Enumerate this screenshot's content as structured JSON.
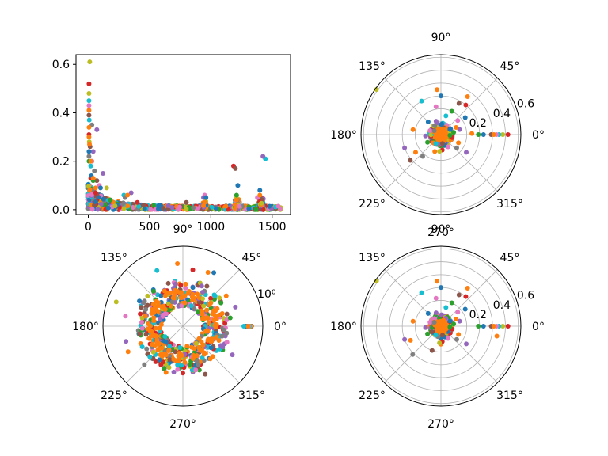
{
  "chart_data": [
    {
      "type": "scatter",
      "xlim": [
        -100,
        1650
      ],
      "ylim": [
        -0.02,
        0.64
      ],
      "xticks": [
        0,
        500,
        1000,
        1500
      ],
      "xtick_labels": [
        "0",
        "500",
        "1000",
        "1500"
      ],
      "yticks": [
        0.0,
        0.2,
        0.4,
        0.6
      ],
      "ytick_labels": [
        "0.0",
        "0.2",
        "0.4",
        "0.6"
      ],
      "grid": false,
      "series": [
        {
          "color": "#d62728",
          "points": [
            [
              6,
              0.52
            ],
            [
              6,
              0.31
            ],
            [
              20,
              0.13
            ],
            [
              1185,
              0.18
            ],
            [
              60,
              0.07
            ],
            [
              400,
              0.03
            ]
          ]
        },
        {
          "color": "#bcbd22",
          "points": [
            [
              12,
              0.61
            ],
            [
              6,
              0.48
            ],
            [
              8,
              0.28
            ],
            [
              150,
              0.09
            ],
            [
              1210,
              0.05
            ]
          ]
        },
        {
          "color": "#17becf",
          "points": [
            [
              6,
              0.45
            ],
            [
              8,
              0.37
            ],
            [
              20,
              0.18
            ],
            [
              1445,
              0.21
            ],
            [
              290,
              0.06
            ]
          ]
        },
        {
          "color": "#8c564b",
          "points": [
            [
              6,
              0.39
            ],
            [
              15,
              0.26
            ],
            [
              70,
              0.12
            ],
            [
              1200,
              0.17
            ],
            [
              800,
              0.03
            ]
          ]
        },
        {
          "color": "#e377c2",
          "points": [
            [
              6,
              0.43
            ],
            [
              30,
              0.2
            ],
            [
              90,
              0.1
            ],
            [
              950,
              0.06
            ],
            [
              1380,
              0.05
            ]
          ]
        },
        {
          "color": "#9467bd",
          "points": [
            [
              70,
              0.33
            ],
            [
              40,
              0.24
            ],
            [
              120,
              0.15
            ],
            [
              1425,
              0.22
            ],
            [
              940,
              0.05
            ],
            [
              350,
              0.07
            ]
          ]
        },
        {
          "color": "#7f7f7f",
          "points": [
            [
              30,
              0.35
            ],
            [
              6,
              0.22
            ],
            [
              50,
              0.16
            ],
            [
              300,
              0.05
            ],
            [
              1215,
              0.04
            ]
          ]
        },
        {
          "color": "#2ca02c",
          "points": [
            [
              6,
              0.2
            ],
            [
              40,
              0.12
            ],
            [
              180,
              0.04
            ],
            [
              1210,
              0.06
            ]
          ]
        },
        {
          "color": "#1f77b4",
          "points": [
            [
              6,
              0.24
            ],
            [
              25,
              0.14
            ],
            [
              100,
              0.09
            ],
            [
              1220,
              0.1
            ],
            [
              1400,
              0.08
            ],
            [
              960,
              0.05
            ]
          ]
        },
        {
          "color": "#ff7f0e",
          "points": [
            [
              6,
              0.41
            ],
            [
              6,
              0.34
            ],
            [
              6,
              0.3
            ],
            [
              10,
              0.27
            ],
            [
              20,
              0.2
            ],
            [
              40,
              0.13
            ],
            [
              60,
              0.09
            ],
            [
              320,
              0.06
            ],
            [
              1210,
              0.04
            ],
            [
              1400,
              0.06
            ],
            [
              950,
              0.03
            ]
          ]
        }
      ]
    },
    {
      "type": "scatter",
      "projection": "polar",
      "rlim": [
        0,
        0.62
      ],
      "rticks": [
        0.2,
        0.4,
        0.6
      ],
      "rtick_labels": [
        "0.2",
        "0.4",
        "0.6"
      ],
      "theta_ticks": [
        "0°",
        "45°",
        "90°",
        "135°",
        "180°",
        "225°",
        "270°",
        "315°"
      ],
      "grid": true,
      "points": [
        {
          "theta": 145,
          "r": 0.61,
          "color": "#bcbd22"
        },
        {
          "theta": 0,
          "r": 0.52,
          "color": "#d62728"
        },
        {
          "theta": 0,
          "r": 0.48,
          "color": "#bcbd22"
        },
        {
          "theta": 0,
          "r": 0.45,
          "color": "#17becf"
        },
        {
          "theta": 0,
          "r": 0.43,
          "color": "#e377c2"
        },
        {
          "theta": 0,
          "r": 0.39,
          "color": "#8c564b"
        },
        {
          "theta": 0,
          "r": 0.33,
          "color": "#1f77b4"
        },
        {
          "theta": 0,
          "r": 0.29,
          "color": "#2ca02c"
        },
        {
          "theta": 0,
          "r": 0.41,
          "color": "#ff7f0e"
        },
        {
          "theta": 2,
          "r": 0.24,
          "color": "#ff7f0e"
        },
        {
          "theta": 95,
          "r": 0.35,
          "color": "#ff7f0e"
        },
        {
          "theta": 90,
          "r": 0.3,
          "color": "#1f77b4"
        },
        {
          "theta": 100,
          "r": 0.22,
          "color": "#e377c2"
        },
        {
          "theta": 120,
          "r": 0.3,
          "color": "#17becf"
        },
        {
          "theta": 60,
          "r": 0.28,
          "color": "#8c564b"
        },
        {
          "theta": 55,
          "r": 0.36,
          "color": "#ff7f0e"
        },
        {
          "theta": 50,
          "r": 0.3,
          "color": "#d62728"
        },
        {
          "theta": 65,
          "r": 0.2,
          "color": "#2ca02c"
        },
        {
          "theta": 40,
          "r": 0.17,
          "color": "#e377c2"
        },
        {
          "theta": 35,
          "r": 0.23,
          "color": "#1f77b4"
        },
        {
          "theta": 170,
          "r": 0.22,
          "color": "#ff7f0e"
        },
        {
          "theta": 215,
          "r": 0.24,
          "color": "#ff7f0e"
        },
        {
          "theta": 200,
          "r": 0.3,
          "color": "#9467bd"
        },
        {
          "theta": 220,
          "r": 0.31,
          "color": "#8c564b"
        },
        {
          "theta": 230,
          "r": 0.22,
          "color": "#7f7f7f"
        },
        {
          "theta": 250,
          "r": 0.14,
          "color": "#ff7f0e"
        },
        {
          "theta": 275,
          "r": 0.12,
          "color": "#d62728"
        },
        {
          "theta": 265,
          "r": 0.13,
          "color": "#bcbd22"
        },
        {
          "theta": 320,
          "r": 0.16,
          "color": "#7f7f7f"
        },
        {
          "theta": 325,
          "r": 0.24,
          "color": "#9467bd"
        },
        {
          "theta": 335,
          "r": 0.15,
          "color": "#ff7f0e"
        },
        {
          "theta": 15,
          "r": 0.15,
          "color": "#9467bd"
        },
        {
          "theta": 25,
          "r": 0.13,
          "color": "#ff7f0e"
        },
        {
          "theta": 10,
          "r": 0.1,
          "color": "#2ca02c"
        },
        {
          "theta": 185,
          "r": 0.12,
          "color": "#9467bd"
        },
        {
          "theta": 160,
          "r": 0.09,
          "color": "#e377c2"
        },
        {
          "theta": 290,
          "r": 0.09,
          "color": "#1f77b4"
        },
        {
          "theta": 300,
          "r": 0.11,
          "color": "#e377c2"
        },
        {
          "theta": 135,
          "r": 0.14,
          "color": "#1f77b4"
        },
        {
          "theta": 75,
          "r": 0.15,
          "color": "#17becf"
        },
        {
          "theta": 210,
          "r": 0.12,
          "color": "#2ca02c"
        },
        {
          "theta": 345,
          "r": 0.09,
          "color": "#d62728"
        },
        {
          "theta": 30,
          "r": 0.08,
          "color": "#1f77b4"
        },
        {
          "theta": 110,
          "r": 0.11,
          "color": "#9467bd"
        },
        {
          "theta": 150,
          "r": 0.06,
          "color": "#7f7f7f"
        },
        {
          "theta": 240,
          "r": 0.08,
          "color": "#17becf"
        },
        {
          "theta": 280,
          "r": 0.07,
          "color": "#8c564b"
        },
        {
          "theta": 355,
          "r": 0.07,
          "color": "#2ca02c"
        }
      ]
    },
    {
      "type": "scatter",
      "projection": "polar",
      "rscale": "log",
      "rtick_labels": [
        "10⁰"
      ],
      "theta_ticks": [
        "0°",
        "45°",
        "90°",
        "135°",
        "180°",
        "225°",
        "270°",
        "315°"
      ],
      "grid": true,
      "points": [
        {
          "theta": 160,
          "r": 0.61,
          "color": "#bcbd22"
        },
        {
          "theta": 0,
          "r": 0.52,
          "color": "#d62728"
        },
        {
          "theta": 0,
          "r": 0.48,
          "color": "#bcbd22"
        },
        {
          "theta": 0,
          "r": 0.45,
          "color": "#17becf"
        },
        {
          "theta": 0,
          "r": 0.43,
          "color": "#e377c2"
        },
        {
          "theta": 0,
          "r": 0.39,
          "color": "#8c564b"
        },
        {
          "theta": 0,
          "r": 0.35,
          "color": "#1f77b4"
        },
        {
          "theta": 0,
          "r": 0.41,
          "color": "#ff7f0e"
        },
        {
          "theta": 0,
          "r": 0.31,
          "color": "#17becf"
        },
        {
          "theta": 95,
          "r": 0.35,
          "color": "#ff7f0e"
        },
        {
          "theta": 115,
          "r": 0.32,
          "color": "#17becf"
        },
        {
          "theta": 60,
          "r": 0.33,
          "color": "#1f77b4"
        },
        {
          "theta": 65,
          "r": 0.28,
          "color": "#ff7f0e"
        },
        {
          "theta": 80,
          "r": 0.24,
          "color": "#d62728"
        },
        {
          "theta": 170,
          "r": 0.26,
          "color": "#e377c2"
        },
        {
          "theta": 195,
          "r": 0.27,
          "color": "#9467bd"
        },
        {
          "theta": 205,
          "r": 0.3,
          "color": "#ff7f0e"
        },
        {
          "theta": 225,
          "r": 0.2,
          "color": "#7f7f7f"
        },
        {
          "theta": 330,
          "r": 0.24,
          "color": "#9467bd"
        },
        {
          "theta": 295,
          "r": 0.18,
          "color": "#8c564b"
        },
        {
          "theta": 20,
          "r": 0.22,
          "color": "#9467bd"
        },
        {
          "theta": 35,
          "r": 0.18,
          "color": "#ff7f0e"
        },
        {
          "theta": 150,
          "r": 0.15,
          "color": "#1f77b4"
        },
        {
          "theta": 250,
          "r": 0.14,
          "color": "#ff7f0e"
        },
        {
          "theta": 270,
          "r": 0.12,
          "color": "#d62728"
        },
        {
          "theta": 10,
          "r": 0.13,
          "color": "#2ca02c"
        },
        {
          "theta": 340,
          "r": 0.12,
          "color": "#e377c2"
        },
        {
          "theta": 130,
          "r": 0.11,
          "color": "#2ca02c"
        },
        {
          "theta": 190,
          "r": 0.1,
          "color": "#8c564b"
        },
        {
          "theta": 310,
          "r": 0.09,
          "color": "#ff7f0e"
        },
        {
          "theta": 45,
          "r": 0.1,
          "color": "#17becf"
        },
        {
          "theta": 235,
          "r": 0.08,
          "color": "#1f77b4"
        },
        {
          "theta": 100,
          "r": 0.09,
          "color": "#9467bd"
        },
        {
          "theta": 280,
          "r": 0.07,
          "color": "#2ca02c"
        },
        {
          "theta": 355,
          "r": 0.08,
          "color": "#7f7f7f"
        },
        {
          "theta": 165,
          "r": 0.07,
          "color": "#ff7f0e"
        }
      ]
    },
    {
      "type": "scatter",
      "projection": "polar",
      "rlim": [
        0,
        0.62
      ],
      "rticks": [
        0.2,
        0.4,
        0.6
      ],
      "rtick_labels": [
        "0.2",
        "0.4",
        "0.6"
      ],
      "theta_ticks": [
        "0°",
        "45°",
        "90°",
        "135°",
        "180°",
        "225°",
        "270°",
        "315°"
      ],
      "grid": true,
      "points": [
        {
          "theta": 145,
          "r": 0.61,
          "color": "#bcbd22"
        },
        {
          "theta": 0,
          "r": 0.52,
          "color": "#d62728"
        },
        {
          "theta": 0,
          "r": 0.48,
          "color": "#bcbd22"
        },
        {
          "theta": 0,
          "r": 0.45,
          "color": "#17becf"
        },
        {
          "theta": 0,
          "r": 0.43,
          "color": "#e377c2"
        },
        {
          "theta": 0,
          "r": 0.39,
          "color": "#8c564b"
        },
        {
          "theta": 0,
          "r": 0.33,
          "color": "#1f77b4"
        },
        {
          "theta": 0,
          "r": 0.29,
          "color": "#2ca02c"
        },
        {
          "theta": 0,
          "r": 0.41,
          "color": "#ff7f0e"
        },
        {
          "theta": 350,
          "r": 0.44,
          "color": "#ff7f0e"
        },
        {
          "theta": 95,
          "r": 0.35,
          "color": "#ff7f0e"
        },
        {
          "theta": 90,
          "r": 0.3,
          "color": "#1f77b4"
        },
        {
          "theta": 100,
          "r": 0.22,
          "color": "#e377c2"
        },
        {
          "theta": 120,
          "r": 0.3,
          "color": "#17becf"
        },
        {
          "theta": 60,
          "r": 0.28,
          "color": "#8c564b"
        },
        {
          "theta": 55,
          "r": 0.36,
          "color": "#ff7f0e"
        },
        {
          "theta": 50,
          "r": 0.3,
          "color": "#d62728"
        },
        {
          "theta": 65,
          "r": 0.2,
          "color": "#2ca02c"
        },
        {
          "theta": 40,
          "r": 0.17,
          "color": "#e377c2"
        },
        {
          "theta": 35,
          "r": 0.23,
          "color": "#1f77b4"
        },
        {
          "theta": 170,
          "r": 0.22,
          "color": "#ff7f0e"
        },
        {
          "theta": 205,
          "r": 0.26,
          "color": "#ff7f0e"
        },
        {
          "theta": 200,
          "r": 0.3,
          "color": "#9467bd"
        },
        {
          "theta": 225,
          "r": 0.31,
          "color": "#7f7f7f"
        },
        {
          "theta": 250,
          "r": 0.2,
          "color": "#8c564b"
        },
        {
          "theta": 270,
          "r": 0.14,
          "color": "#ff7f0e"
        },
        {
          "theta": 275,
          "r": 0.12,
          "color": "#d62728"
        },
        {
          "theta": 265,
          "r": 0.13,
          "color": "#bcbd22"
        },
        {
          "theta": 320,
          "r": 0.16,
          "color": "#7f7f7f"
        },
        {
          "theta": 325,
          "r": 0.24,
          "color": "#9467bd"
        },
        {
          "theta": 335,
          "r": 0.15,
          "color": "#ff7f0e"
        },
        {
          "theta": 15,
          "r": 0.15,
          "color": "#9467bd"
        },
        {
          "theta": 25,
          "r": 0.13,
          "color": "#ff7f0e"
        },
        {
          "theta": 10,
          "r": 0.1,
          "color": "#2ca02c"
        },
        {
          "theta": 185,
          "r": 0.12,
          "color": "#9467bd"
        },
        {
          "theta": 160,
          "r": 0.09,
          "color": "#e377c2"
        },
        {
          "theta": 290,
          "r": 0.09,
          "color": "#1f77b4"
        },
        {
          "theta": 300,
          "r": 0.11,
          "color": "#e377c2"
        },
        {
          "theta": 135,
          "r": 0.14,
          "color": "#1f77b4"
        },
        {
          "theta": 75,
          "r": 0.15,
          "color": "#17becf"
        },
        {
          "theta": 210,
          "r": 0.12,
          "color": "#2ca02c"
        },
        {
          "theta": 345,
          "r": 0.09,
          "color": "#d62728"
        },
        {
          "theta": 30,
          "r": 0.08,
          "color": "#1f77b4"
        },
        {
          "theta": 110,
          "r": 0.11,
          "color": "#9467bd"
        },
        {
          "theta": 150,
          "r": 0.06,
          "color": "#7f7f7f"
        },
        {
          "theta": 240,
          "r": 0.08,
          "color": "#17becf"
        },
        {
          "theta": 280,
          "r": 0.07,
          "color": "#8c564b"
        },
        {
          "theta": 355,
          "r": 0.07,
          "color": "#2ca02c"
        }
      ]
    }
  ]
}
